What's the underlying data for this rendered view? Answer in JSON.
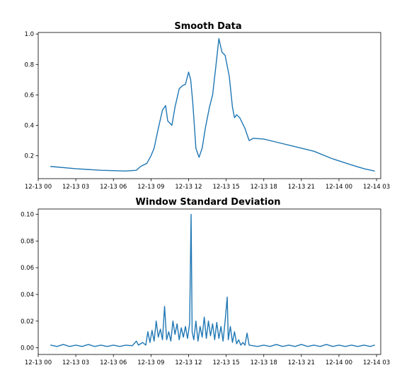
{
  "chart_data": [
    {
      "type": "line",
      "title": "Smooth Data",
      "xlabel": "",
      "ylabel": "",
      "xlim": [
        "2023-12-13T00:00",
        "2023-12-14T03:20"
      ],
      "ylim": [
        0.05,
        1.01
      ],
      "grid": false,
      "legend": "none",
      "x_ticks": [
        "12-13 00",
        "12-13 03",
        "12-13 06",
        "12-13 09",
        "12-13 12",
        "12-13 15",
        "12-13 18",
        "12-13 21",
        "12-14 00",
        "12-14 03"
      ],
      "y_ticks": [
        0.2,
        0.4,
        0.6,
        0.8,
        1.0
      ],
      "y_tick_labels": [
        "0.2",
        "0.4",
        "0.6",
        "0.8",
        "1.0"
      ],
      "series": [
        {
          "color": "#1f77b4",
          "points": [
            [
              "2023-12-13T01:00",
              0.13
            ],
            [
              "2023-12-13T03:00",
              0.115
            ],
            [
              "2023-12-13T05:00",
              0.105
            ],
            [
              "2023-12-13T07:00",
              0.1
            ],
            [
              "2023-12-13T07:50",
              0.105
            ],
            [
              "2023-12-13T08:10",
              0.13
            ],
            [
              "2023-12-13T08:40",
              0.15
            ],
            [
              "2023-12-13T09:00",
              0.2
            ],
            [
              "2023-12-13T09:15",
              0.25
            ],
            [
              "2023-12-13T09:35",
              0.38
            ],
            [
              "2023-12-13T09:55",
              0.5
            ],
            [
              "2023-12-13T10:10",
              0.53
            ],
            [
              "2023-12-13T10:20",
              0.43
            ],
            [
              "2023-12-13T10:40",
              0.4
            ],
            [
              "2023-12-13T10:55",
              0.52
            ],
            [
              "2023-12-13T11:15",
              0.64
            ],
            [
              "2023-12-13T11:30",
              0.66
            ],
            [
              "2023-12-13T11:45",
              0.67
            ],
            [
              "2023-12-13T12:00",
              0.75
            ],
            [
              "2023-12-13T12:10",
              0.7
            ],
            [
              "2023-12-13T12:20",
              0.55
            ],
            [
              "2023-12-13T12:35",
              0.25
            ],
            [
              "2023-12-13T12:50",
              0.19
            ],
            [
              "2023-12-13T13:05",
              0.25
            ],
            [
              "2023-12-13T13:20",
              0.38
            ],
            [
              "2023-12-13T13:40",
              0.52
            ],
            [
              "2023-12-13T13:55",
              0.6
            ],
            [
              "2023-12-13T14:10",
              0.78
            ],
            [
              "2023-12-13T14:25",
              0.97
            ],
            [
              "2023-12-13T14:40",
              0.88
            ],
            [
              "2023-12-13T14:55",
              0.86
            ],
            [
              "2023-12-13T15:15",
              0.72
            ],
            [
              "2023-12-13T15:30",
              0.52
            ],
            [
              "2023-12-13T15:40",
              0.45
            ],
            [
              "2023-12-13T15:50",
              0.47
            ],
            [
              "2023-12-13T16:05",
              0.45
            ],
            [
              "2023-12-13T16:30",
              0.38
            ],
            [
              "2023-12-13T16:50",
              0.3
            ],
            [
              "2023-12-13T17:10",
              0.315
            ],
            [
              "2023-12-13T18:00",
              0.31
            ],
            [
              "2023-12-13T19:00",
              0.29
            ],
            [
              "2023-12-13T20:30",
              0.26
            ],
            [
              "2023-12-13T22:00",
              0.23
            ],
            [
              "2023-12-13T23:30",
              0.18
            ],
            [
              "2023-12-14T01:00",
              0.14
            ],
            [
              "2023-12-14T02:00",
              0.115
            ],
            [
              "2023-12-14T02:50",
              0.1
            ]
          ]
        }
      ]
    },
    {
      "type": "line",
      "title": "Window Standard Deviation",
      "xlabel": "",
      "ylabel": "",
      "xlim": [
        "2023-12-13T00:00",
        "2023-12-14T03:20"
      ],
      "ylim": [
        -0.005,
        0.104
      ],
      "grid": false,
      "legend": "none",
      "x_ticks": [
        "12-13 00",
        "12-13 03",
        "12-13 06",
        "12-13 09",
        "12-13 12",
        "12-13 15",
        "12-13 18",
        "12-13 21",
        "12-14 00",
        "12-14 03"
      ],
      "y_ticks": [
        0.0,
        0.02,
        0.04,
        0.06,
        0.08,
        0.1
      ],
      "y_tick_labels": [
        "0.00",
        "0.02",
        "0.04",
        "0.06",
        "0.08",
        "0.10"
      ],
      "series": [
        {
          "color": "#1f77b4",
          "points": [
            [
              "2023-12-13T01:00",
              0.002
            ],
            [
              "2023-12-13T01:30",
              0.001
            ],
            [
              "2023-12-13T02:00",
              0.0025
            ],
            [
              "2023-12-13T02:30",
              0.001
            ],
            [
              "2023-12-13T03:00",
              0.002
            ],
            [
              "2023-12-13T03:30",
              0.001
            ],
            [
              "2023-12-13T04:00",
              0.0025
            ],
            [
              "2023-12-13T04:30",
              0.001
            ],
            [
              "2023-12-13T05:00",
              0.002
            ],
            [
              "2023-12-13T05:30",
              0.001
            ],
            [
              "2023-12-13T06:00",
              0.002
            ],
            [
              "2023-12-13T06:30",
              0.001
            ],
            [
              "2023-12-13T07:00",
              0.002
            ],
            [
              "2023-12-13T07:30",
              0.0015
            ],
            [
              "2023-12-13T07:50",
              0.005
            ],
            [
              "2023-12-13T08:00",
              0.002
            ],
            [
              "2023-12-13T08:20",
              0.004
            ],
            [
              "2023-12-13T08:35",
              0.002
            ],
            [
              "2023-12-13T08:45",
              0.012
            ],
            [
              "2023-12-13T08:55",
              0.004
            ],
            [
              "2023-12-13T09:05",
              0.013
            ],
            [
              "2023-12-13T09:15",
              0.005
            ],
            [
              "2023-12-13T09:25",
              0.02
            ],
            [
              "2023-12-13T09:35",
              0.008
            ],
            [
              "2023-12-13T09:45",
              0.014
            ],
            [
              "2023-12-13T09:55",
              0.006
            ],
            [
              "2023-12-13T10:05",
              0.031
            ],
            [
              "2023-12-13T10:15",
              0.006
            ],
            [
              "2023-12-13T10:25",
              0.012
            ],
            [
              "2023-12-13T10:35",
              0.005
            ],
            [
              "2023-12-13T10:45",
              0.02
            ],
            [
              "2023-12-13T10:55",
              0.01
            ],
            [
              "2023-12-13T11:05",
              0.018
            ],
            [
              "2023-12-13T11:15",
              0.006
            ],
            [
              "2023-12-13T11:25",
              0.015
            ],
            [
              "2023-12-13T11:35",
              0.008
            ],
            [
              "2023-12-13T11:45",
              0.016
            ],
            [
              "2023-12-13T11:55",
              0.007
            ],
            [
              "2023-12-13T12:05",
              0.018
            ],
            [
              "2023-12-13T12:12",
              0.1
            ],
            [
              "2023-12-13T12:17",
              0.012
            ],
            [
              "2023-12-13T12:25",
              0.006
            ],
            [
              "2023-12-13T12:35",
              0.02
            ],
            [
              "2023-12-13T12:45",
              0.005
            ],
            [
              "2023-12-13T12:55",
              0.016
            ],
            [
              "2023-12-13T13:05",
              0.008
            ],
            [
              "2023-12-13T13:15",
              0.023
            ],
            [
              "2023-12-13T13:25",
              0.007
            ],
            [
              "2023-12-13T13:35",
              0.02
            ],
            [
              "2023-12-13T13:45",
              0.009
            ],
            [
              "2023-12-13T13:55",
              0.018
            ],
            [
              "2023-12-13T14:05",
              0.006
            ],
            [
              "2023-12-13T14:15",
              0.019
            ],
            [
              "2023-12-13T14:25",
              0.007
            ],
            [
              "2023-12-13T14:35",
              0.016
            ],
            [
              "2023-12-13T14:45",
              0.005
            ],
            [
              "2023-12-13T14:55",
              0.02
            ],
            [
              "2023-12-13T15:05",
              0.038
            ],
            [
              "2023-12-13T15:10",
              0.006
            ],
            [
              "2023-12-13T15:20",
              0.016
            ],
            [
              "2023-12-13T15:30",
              0.004
            ],
            [
              "2023-12-13T15:40",
              0.012
            ],
            [
              "2023-12-13T15:50",
              0.003
            ],
            [
              "2023-12-13T16:00",
              0.006
            ],
            [
              "2023-12-13T16:10",
              0.002
            ],
            [
              "2023-12-13T16:20",
              0.004
            ],
            [
              "2023-12-13T16:30",
              0.002
            ],
            [
              "2023-12-13T16:40",
              0.011
            ],
            [
              "2023-12-13T16:50",
              0.002
            ],
            [
              "2023-12-13T17:30",
              0.001
            ],
            [
              "2023-12-13T18:00",
              0.002
            ],
            [
              "2023-12-13T18:30",
              0.001
            ],
            [
              "2023-12-13T19:00",
              0.0025
            ],
            [
              "2023-12-13T19:30",
              0.001
            ],
            [
              "2023-12-13T20:00",
              0.002
            ],
            [
              "2023-12-13T20:30",
              0.001
            ],
            [
              "2023-12-13T21:00",
              0.0025
            ],
            [
              "2023-12-13T21:30",
              0.001
            ],
            [
              "2023-12-13T22:00",
              0.002
            ],
            [
              "2023-12-13T22:30",
              0.001
            ],
            [
              "2023-12-13T23:00",
              0.0025
            ],
            [
              "2023-12-13T23:30",
              0.001
            ],
            [
              "2023-12-14T00:00",
              0.002
            ],
            [
              "2023-12-14T00:30",
              0.001
            ],
            [
              "2023-12-14T01:00",
              0.002
            ],
            [
              "2023-12-14T01:30",
              0.001
            ],
            [
              "2023-12-14T02:00",
              0.002
            ],
            [
              "2023-12-14T02:30",
              0.001
            ],
            [
              "2023-12-14T02:50",
              0.002
            ]
          ]
        }
      ]
    }
  ]
}
